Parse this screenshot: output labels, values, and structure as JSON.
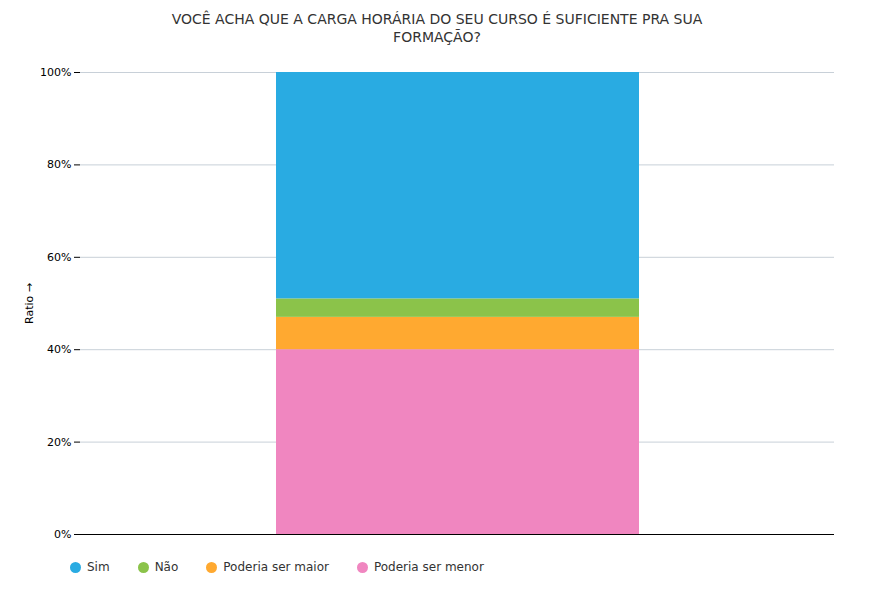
{
  "chart_data": {
    "type": "bar",
    "title": "VOCÊ ACHA QUE A CARGA HORÁRIA DO SEU CURSO É SUFICIENTE PRA SUA\nFORMAÇÃO?",
    "y_label": "Ratio",
    "categories": [
      null
    ],
    "series": [
      {
        "name": "Poderia ser menor",
        "color": "#F086C0",
        "values": [
          0.4
        ]
      },
      {
        "name": "Poderia ser maior",
        "color": "#FFA930",
        "values": [
          0.07
        ]
      },
      {
        "name": "Não",
        "color": "#8BC34A",
        "values": [
          0.04
        ]
      },
      {
        "name": "Sim",
        "color": "#29ABE2",
        "values": [
          0.49
        ]
      }
    ],
    "stacked": true,
    "ylim": [
      0,
      1.0
    ],
    "yticks": [
      {
        "value": 0.0,
        "label": "0%"
      },
      {
        "value": 0.2,
        "label": "20%"
      },
      {
        "value": 0.4,
        "label": "40%"
      },
      {
        "value": 0.6,
        "label": "60%"
      },
      {
        "value": 0.8,
        "label": "80%"
      },
      {
        "value": 1.0,
        "label": "100%"
      }
    ],
    "grid": true,
    "legend": "bottom",
    "tick_labels": "y"
  }
}
